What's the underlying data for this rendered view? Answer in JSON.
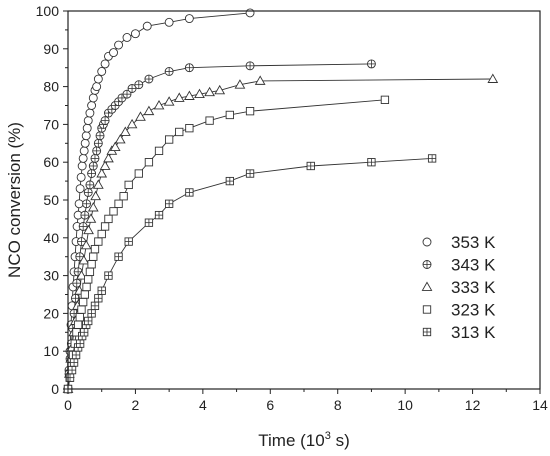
{
  "chart_data": {
    "type": "scatter",
    "xlabel_main": "Time (10",
    "xlabel_sup": "3",
    "xlabel_end": " s)",
    "ylabel": "NCO conversion (%)",
    "xlim": [
      0,
      14
    ],
    "ylim": [
      0,
      100
    ],
    "xticks": [
      "0",
      "2",
      "4",
      "6",
      "8",
      "10",
      "12",
      "14"
    ],
    "yticks": [
      "0",
      "10",
      "20",
      "30",
      "40",
      "50",
      "60",
      "70",
      "80",
      "90",
      "100"
    ],
    "grid": false,
    "legend_position": "bottom-right",
    "series": [
      {
        "name": "353 K",
        "marker": "circle",
        "points": [
          [
            0.0,
            0
          ],
          [
            0.03,
            5
          ],
          [
            0.06,
            10
          ],
          [
            0.09,
            17
          ],
          [
            0.12,
            22
          ],
          [
            0.15,
            27
          ],
          [
            0.18,
            31
          ],
          [
            0.21,
            35
          ],
          [
            0.24,
            39
          ],
          [
            0.27,
            43
          ],
          [
            0.3,
            46
          ],
          [
            0.33,
            49
          ],
          [
            0.36,
            53
          ],
          [
            0.39,
            56
          ],
          [
            0.42,
            59
          ],
          [
            0.45,
            61
          ],
          [
            0.48,
            63
          ],
          [
            0.51,
            65
          ],
          [
            0.54,
            67
          ],
          [
            0.57,
            69
          ],
          [
            0.6,
            71
          ],
          [
            0.65,
            73
          ],
          [
            0.7,
            75
          ],
          [
            0.75,
            77
          ],
          [
            0.8,
            79
          ],
          [
            0.85,
            80
          ],
          [
            0.9,
            82
          ],
          [
            1.0,
            84
          ],
          [
            1.1,
            86
          ],
          [
            1.2,
            88
          ],
          [
            1.35,
            89
          ],
          [
            1.5,
            91
          ],
          [
            1.75,
            93
          ],
          [
            2.0,
            94
          ],
          [
            2.35,
            96
          ],
          [
            3.0,
            97
          ],
          [
            3.6,
            98
          ],
          [
            5.4,
            99.5
          ]
        ]
      },
      {
        "name": "343 K",
        "marker": "circle-plus",
        "points": [
          [
            0.0,
            0
          ],
          [
            0.03,
            4
          ],
          [
            0.06,
            8
          ],
          [
            0.1,
            12
          ],
          [
            0.14,
            16
          ],
          [
            0.18,
            20
          ],
          [
            0.22,
            24
          ],
          [
            0.26,
            28
          ],
          [
            0.3,
            31
          ],
          [
            0.35,
            35
          ],
          [
            0.4,
            39
          ],
          [
            0.45,
            43
          ],
          [
            0.5,
            46
          ],
          [
            0.55,
            49
          ],
          [
            0.6,
            52
          ],
          [
            0.65,
            54
          ],
          [
            0.7,
            57
          ],
          [
            0.75,
            59
          ],
          [
            0.8,
            61
          ],
          [
            0.85,
            63
          ],
          [
            0.9,
            65
          ],
          [
            0.95,
            67
          ],
          [
            1.0,
            69
          ],
          [
            1.05,
            70
          ],
          [
            1.1,
            71
          ],
          [
            1.2,
            73
          ],
          [
            1.3,
            74
          ],
          [
            1.4,
            75
          ],
          [
            1.5,
            76
          ],
          [
            1.6,
            77
          ],
          [
            1.75,
            78
          ],
          [
            1.9,
            79.5
          ],
          [
            2.1,
            80.5
          ],
          [
            2.4,
            82
          ],
          [
            3.0,
            84
          ],
          [
            3.6,
            85
          ],
          [
            5.4,
            85.5
          ],
          [
            9.0,
            86
          ]
        ]
      },
      {
        "name": "333 K",
        "marker": "triangle",
        "points": [
          [
            0.0,
            0
          ],
          [
            0.04,
            4
          ],
          [
            0.08,
            8
          ],
          [
            0.12,
            11
          ],
          [
            0.17,
            15
          ],
          [
            0.22,
            18
          ],
          [
            0.28,
            22
          ],
          [
            0.34,
            26
          ],
          [
            0.4,
            30
          ],
          [
            0.47,
            34
          ],
          [
            0.54,
            38
          ],
          [
            0.61,
            42
          ],
          [
            0.68,
            45
          ],
          [
            0.75,
            48
          ],
          [
            0.82,
            51
          ],
          [
            0.9,
            54
          ],
          [
            1.0,
            57
          ],
          [
            1.1,
            59
          ],
          [
            1.2,
            61
          ],
          [
            1.3,
            63
          ],
          [
            1.4,
            64
          ],
          [
            1.55,
            66
          ],
          [
            1.7,
            68
          ],
          [
            1.9,
            70
          ],
          [
            2.15,
            72
          ],
          [
            2.4,
            73.5
          ],
          [
            2.7,
            75
          ],
          [
            3.0,
            76
          ],
          [
            3.3,
            77
          ],
          [
            3.6,
            77.5
          ],
          [
            3.9,
            78
          ],
          [
            4.2,
            78.5
          ],
          [
            4.5,
            79
          ],
          [
            5.1,
            80.5
          ],
          [
            5.7,
            81.5
          ],
          [
            12.6,
            82
          ]
        ]
      },
      {
        "name": "323 K",
        "marker": "square",
        "points": [
          [
            0.0,
            0
          ],
          [
            0.05,
            3
          ],
          [
            0.1,
            6
          ],
          [
            0.15,
            9
          ],
          [
            0.2,
            12
          ],
          [
            0.25,
            15
          ],
          [
            0.3,
            17
          ],
          [
            0.35,
            19
          ],
          [
            0.4,
            21
          ],
          [
            0.45,
            23
          ],
          [
            0.5,
            25
          ],
          [
            0.55,
            27
          ],
          [
            0.6,
            29
          ],
          [
            0.65,
            31
          ],
          [
            0.7,
            33
          ],
          [
            0.75,
            35
          ],
          [
            0.8,
            37
          ],
          [
            0.9,
            39
          ],
          [
            1.0,
            41
          ],
          [
            1.1,
            43
          ],
          [
            1.2,
            45
          ],
          [
            1.35,
            47
          ],
          [
            1.5,
            49
          ],
          [
            1.65,
            51
          ],
          [
            1.8,
            54
          ],
          [
            2.1,
            57
          ],
          [
            2.4,
            60
          ],
          [
            2.7,
            63
          ],
          [
            3.0,
            66
          ],
          [
            3.3,
            68
          ],
          [
            3.6,
            69
          ],
          [
            4.2,
            71
          ],
          [
            4.8,
            72.5
          ],
          [
            5.4,
            73.5
          ],
          [
            9.4,
            76.5
          ]
        ]
      },
      {
        "name": "313 K",
        "marker": "square-plus",
        "points": [
          [
            0.0,
            0
          ],
          [
            0.06,
            3
          ],
          [
            0.12,
            5
          ],
          [
            0.18,
            7
          ],
          [
            0.24,
            9
          ],
          [
            0.3,
            11
          ],
          [
            0.36,
            12
          ],
          [
            0.42,
            14
          ],
          [
            0.48,
            15
          ],
          [
            0.54,
            17
          ],
          [
            0.6,
            18
          ],
          [
            0.7,
            20
          ],
          [
            0.8,
            22
          ],
          [
            0.9,
            24
          ],
          [
            1.0,
            26
          ],
          [
            1.2,
            30
          ],
          [
            1.5,
            35
          ],
          [
            1.8,
            39
          ],
          [
            2.4,
            44
          ],
          [
            2.7,
            46
          ],
          [
            3.0,
            49
          ],
          [
            3.6,
            52
          ],
          [
            4.8,
            55
          ],
          [
            5.4,
            57
          ],
          [
            7.2,
            59
          ],
          [
            9.0,
            60
          ],
          [
            10.8,
            61
          ]
        ]
      }
    ]
  }
}
